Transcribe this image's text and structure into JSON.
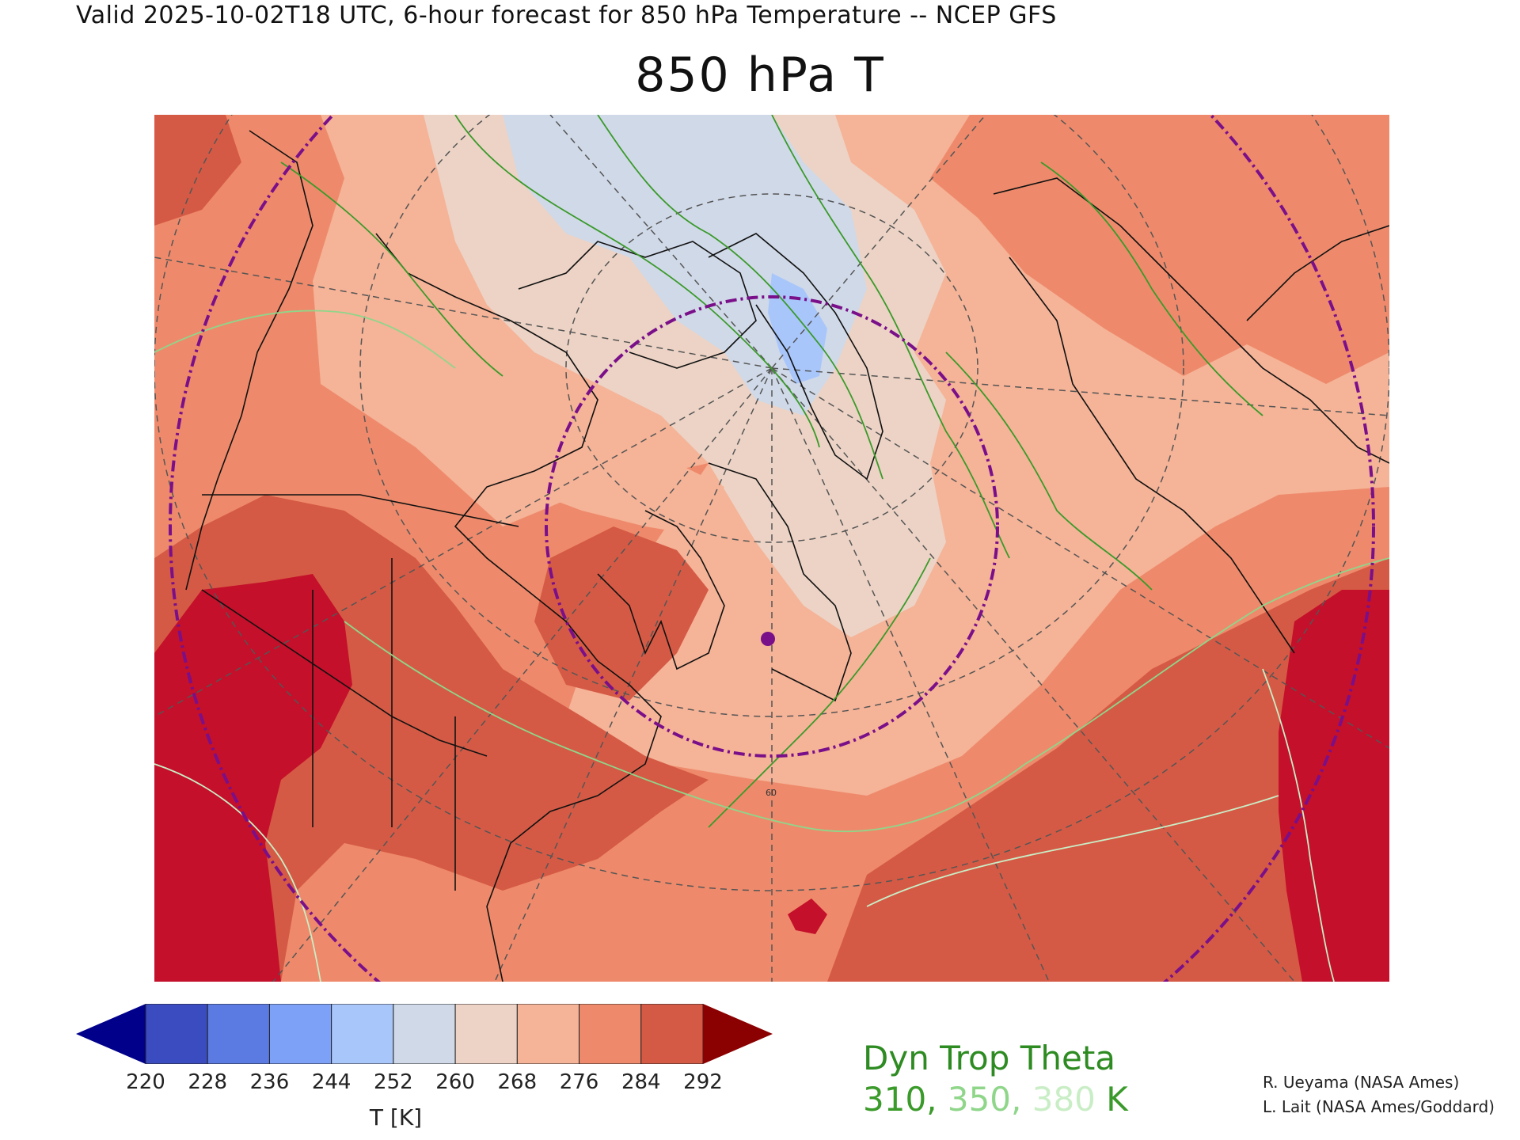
{
  "header": {
    "valid_line": "Valid 2025-10-02T18 UTC, 6-hour forecast for 850 hPa Temperature -- NCEP GFS"
  },
  "title": "850 hPa T",
  "map": {
    "description_kind": "polar stereographic map of North America, Arctic and North Atlantic",
    "field": "850 hPa Temperature",
    "field_units": "K",
    "contour_field": "Dyn Trop Theta",
    "contour_levels": [
      310,
      350,
      380
    ],
    "contour_colors": [
      "#3a9a2a",
      "#8fd68a",
      "#c9eec6"
    ],
    "marker_color": "#7a0f8a",
    "circle_color": "#7a0f8a",
    "gridline_label": "60"
  },
  "colorbar": {
    "ticks": [
      "220",
      "228",
      "236",
      "244",
      "252",
      "260",
      "268",
      "276",
      "284",
      "292"
    ],
    "colors": [
      "#00008b",
      "#3b4cc0",
      "#5b7be3",
      "#7ea1f8",
      "#a9c6fb",
      "#d0d9e8",
      "#ecd3c5",
      "#f5b397",
      "#ee8a6b",
      "#d55a45",
      "#8b0000"
    ],
    "units_label": "T [K]"
  },
  "legend": {
    "title": "Dyn Trop Theta",
    "level_1": "310,",
    "level_2": " 350,",
    "level_3": " 380",
    "unit": " K"
  },
  "credits": {
    "line1": "R. Ueyama (NASA Ames)",
    "line2": "L. Lait (NASA Ames/Goddard)"
  }
}
